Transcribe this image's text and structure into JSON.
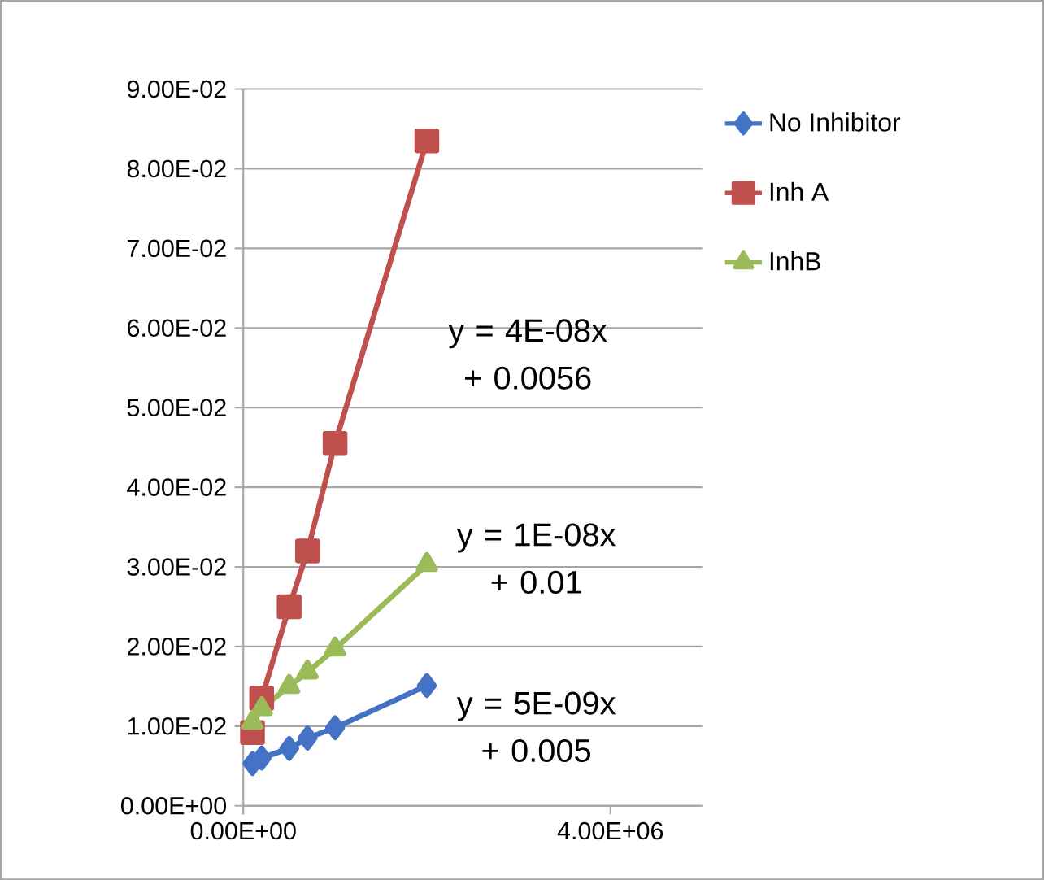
{
  "chart_data": {
    "type": "line",
    "x": [
      100000,
      200000,
      500000,
      700000,
      1000000,
      2000000
    ],
    "series": [
      {
        "name": "No Inhibitor",
        "color": "#4472c4",
        "marker": "diamond",
        "values": [
          0.0053,
          0.006,
          0.0072,
          0.0085,
          0.0098,
          0.0151
        ]
      },
      {
        "name": "Inh A",
        "color": "#c0504d",
        "marker": "square",
        "values": [
          0.0092,
          0.0135,
          0.025,
          0.032,
          0.0455,
          0.0835
        ]
      },
      {
        "name": "InhB",
        "color": "#9bbb59",
        "marker": "triangle",
        "values": [
          0.0105,
          0.0122,
          0.015,
          0.0168,
          0.0197,
          0.0303
        ]
      }
    ],
    "xlim": [
      0,
      5000000
    ],
    "xticks": [
      {
        "value": 0,
        "label": "0.00E+00"
      },
      {
        "value": 4000000,
        "label": "4.00E+06"
      }
    ],
    "ylim": [
      0,
      0.09
    ],
    "yticks": [
      {
        "value": 0,
        "label": "0.00E+00"
      },
      {
        "value": 0.01,
        "label": "1.00E-02"
      },
      {
        "value": 0.02,
        "label": "2.00E-02"
      },
      {
        "value": 0.03,
        "label": "3.00E-02"
      },
      {
        "value": 0.04,
        "label": "4.00E-02"
      },
      {
        "value": 0.05,
        "label": "5.00E-02"
      },
      {
        "value": 0.06,
        "label": "6.00E-02"
      },
      {
        "value": 0.07,
        "label": "7.00E-02"
      },
      {
        "value": 0.08,
        "label": "8.00E-02"
      },
      {
        "value": 0.09,
        "label": "9.00E-02"
      }
    ],
    "grid": "y",
    "legend": "right",
    "annotations": [
      "y = 4E-08x + 0.0056",
      "y = 1E-08x + 0.01",
      "y = 5E-09x + 0.005"
    ]
  }
}
